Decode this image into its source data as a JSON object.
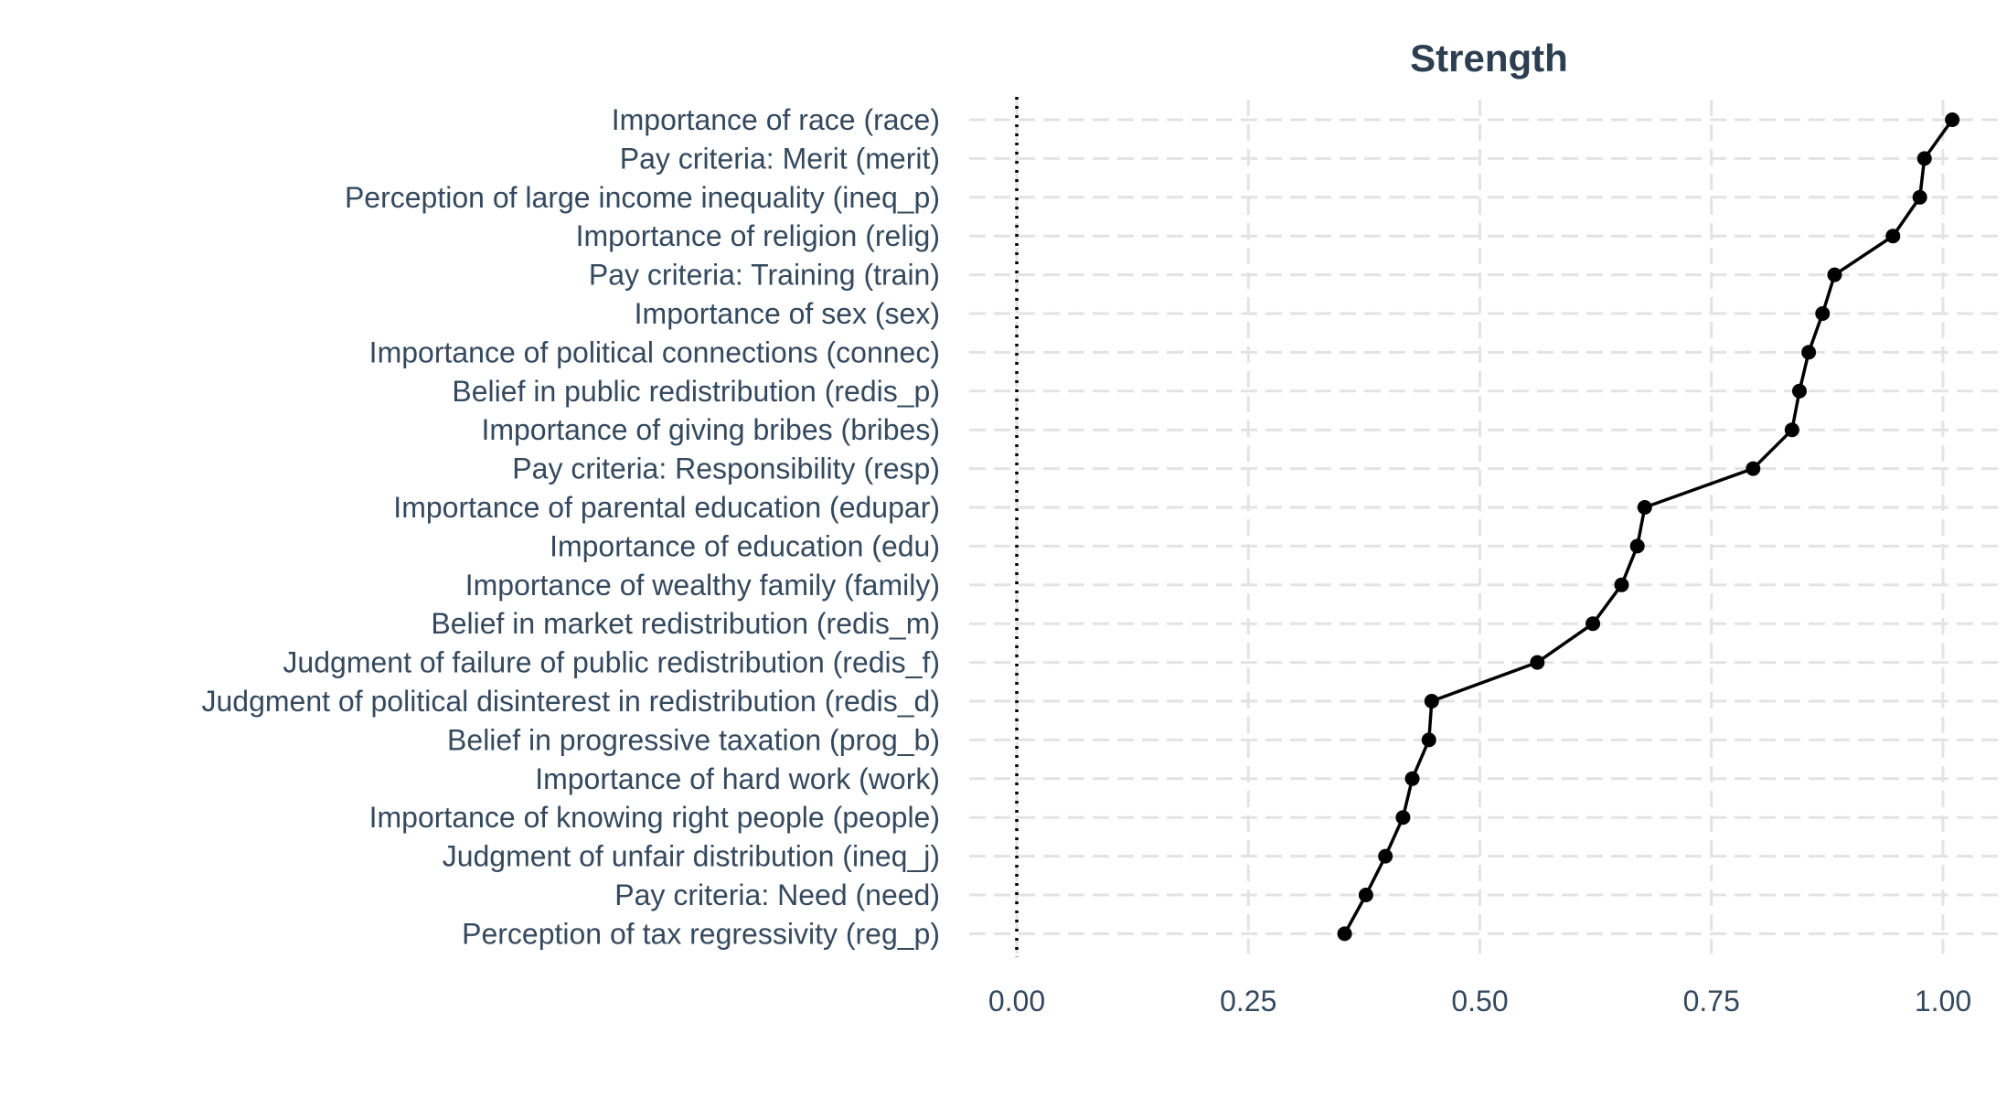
{
  "chart_data": {
    "type": "line",
    "title": "Strength",
    "xlabel": "",
    "ylabel": "",
    "xlim": [
      -0.02,
      1.07
    ],
    "xticks": [
      0,
      0.25,
      0.5,
      0.75,
      1
    ],
    "xtick_labels": [
      "0.00",
      "0.25",
      "0.50",
      "0.75",
      "1.00"
    ],
    "grid": true,
    "reference_line_x": 0,
    "categories": [
      "Importance of race (race)",
      "Pay criteria: Merit (merit)",
      "Perception of large income inequality (ineq_p)",
      "Importance of religion (relig)",
      "Pay criteria: Training (train)",
      "Importance of sex (sex)",
      "Importance of political connections (connec)",
      "Belief in public redistribution (redis_p)",
      "Importance of giving bribes (bribes)",
      "Pay criteria: Responsibility (resp)",
      "Importance of parental education (edupar)",
      "Importance of education (edu)",
      "Importance of wealthy family (family)",
      "Belief in market redistribution (redis_m)",
      "Judgment of failure of public redistribution (redis_f)",
      "Judgment of political disinterest in redistribution (redis_d)",
      "Belief in progressive taxation (prog_b)",
      "Importance of hard work (work)",
      "Importance of knowing right people (people)",
      "Judgment of unfair distribution (ineq_j)",
      "Pay criteria: Need (need)",
      "Perception of tax regressivity (reg_p)"
    ],
    "series": [
      {
        "values": [
          1.01,
          0.98,
          0.975,
          0.946,
          0.883,
          0.87,
          0.855,
          0.845,
          0.837,
          0.795,
          0.678,
          0.67,
          0.653,
          0.622,
          0.562,
          0.448,
          0.445,
          0.427,
          0.417,
          0.398,
          0.377,
          0.354
        ]
      }
    ]
  }
}
